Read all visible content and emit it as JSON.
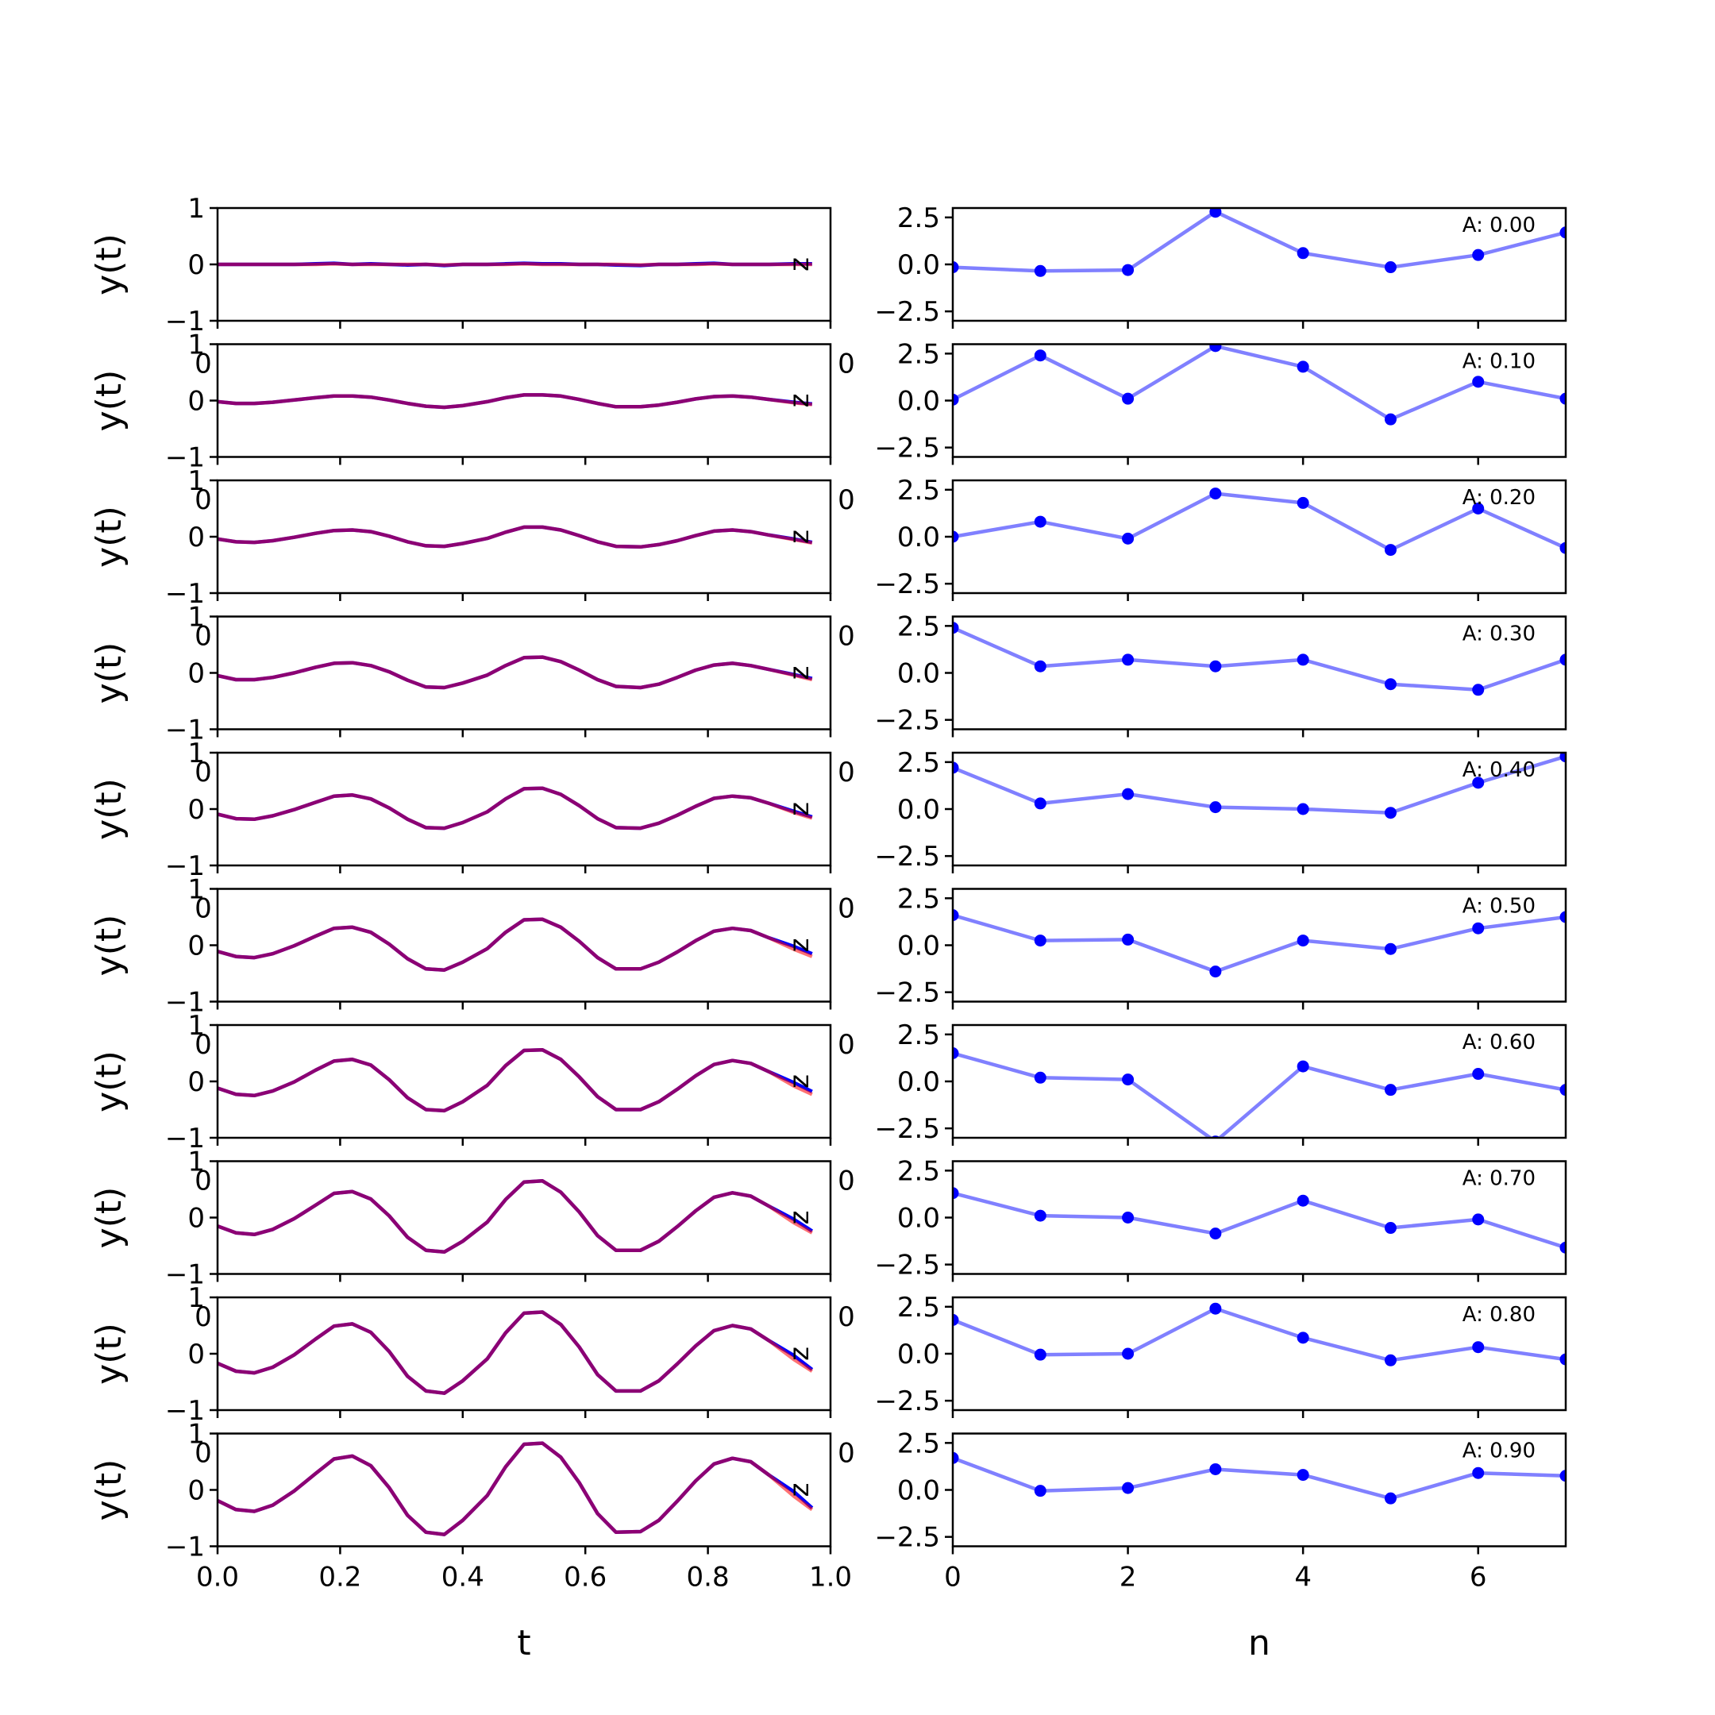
{
  "chart_data": [
    {
      "type": "line",
      "panel": "time-domain",
      "xlabel": "t",
      "ylabel": "y(t)",
      "xlim": [
        0.0,
        1.0
      ],
      "ylim": [
        -1,
        1
      ],
      "x_ticks": [
        "0.0",
        "0.2",
        "0.4",
        "0.6",
        "0.8",
        "1.0"
      ],
      "y_ticks": [
        "1",
        "0",
        "−1"
      ],
      "stray_tick_labels": [
        "0",
        "0"
      ],
      "t": [
        0.0,
        0.03,
        0.06,
        0.09,
        0.125,
        0.16,
        0.19,
        0.22,
        0.25,
        0.28,
        0.31,
        0.34,
        0.37,
        0.4,
        0.44,
        0.47,
        0.5,
        0.53,
        0.56,
        0.59,
        0.62,
        0.65,
        0.69,
        0.72,
        0.75,
        0.78,
        0.81,
        0.84,
        0.87,
        0.9,
        0.94,
        0.97
      ],
      "rows": [
        {
          "A": 0.0,
          "blue": [
            0.0,
            0.0,
            0.0,
            0.0,
            0.0,
            0.01,
            0.02,
            0.0,
            0.01,
            0.0,
            -0.01,
            0.0,
            -0.02,
            0.0,
            0.0,
            0.01,
            0.02,
            0.01,
            0.01,
            0.0,
            0.0,
            -0.01,
            -0.02,
            0.0,
            0.0,
            0.01,
            0.02,
            0.0,
            0.0,
            0.0,
            0.01,
            0.01
          ],
          "red": [
            0.0,
            0.0,
            0.0,
            0.0,
            0.0,
            0.0,
            0.01,
            0.0,
            0.0,
            0.0,
            0.0,
            0.0,
            -0.01,
            0.0,
            0.0,
            0.0,
            0.01,
            0.0,
            0.0,
            0.0,
            0.0,
            0.0,
            -0.01,
            0.0,
            0.0,
            0.0,
            0.01,
            0.0,
            0.0,
            0.0,
            0.0,
            0.0
          ]
        },
        {
          "A": 0.1,
          "blue": [
            -0.02,
            -0.05,
            -0.05,
            -0.03,
            0.01,
            0.05,
            0.08,
            0.08,
            0.06,
            0.01,
            -0.05,
            -0.1,
            -0.12,
            -0.09,
            -0.02,
            0.05,
            0.1,
            0.1,
            0.08,
            0.02,
            -0.05,
            -0.11,
            -0.11,
            -0.08,
            -0.03,
            0.03,
            0.07,
            0.08,
            0.06,
            0.02,
            -0.03,
            -0.06
          ],
          "red": [
            -0.02,
            -0.05,
            -0.05,
            -0.03,
            0.01,
            0.05,
            0.08,
            0.08,
            0.06,
            0.01,
            -0.05,
            -0.1,
            -0.12,
            -0.09,
            -0.02,
            0.05,
            0.1,
            0.1,
            0.08,
            0.02,
            -0.05,
            -0.11,
            -0.11,
            -0.08,
            -0.03,
            0.03,
            0.07,
            0.08,
            0.06,
            0.02,
            -0.04,
            -0.07
          ]
        },
        {
          "A": 0.2,
          "blue": [
            -0.04,
            -0.09,
            -0.1,
            -0.07,
            -0.01,
            0.06,
            0.11,
            0.12,
            0.09,
            0.01,
            -0.09,
            -0.16,
            -0.17,
            -0.12,
            -0.03,
            0.08,
            0.17,
            0.17,
            0.12,
            0.02,
            -0.09,
            -0.17,
            -0.18,
            -0.14,
            -0.07,
            0.02,
            0.1,
            0.12,
            0.09,
            0.03,
            -0.04,
            -0.1
          ],
          "red": [
            -0.04,
            -0.09,
            -0.1,
            -0.07,
            -0.01,
            0.06,
            0.11,
            0.12,
            0.09,
            0.01,
            -0.09,
            -0.16,
            -0.17,
            -0.12,
            -0.03,
            0.08,
            0.17,
            0.17,
            0.12,
            0.02,
            -0.09,
            -0.17,
            -0.18,
            -0.14,
            -0.07,
            0.02,
            0.1,
            0.12,
            0.09,
            0.03,
            -0.05,
            -0.11
          ]
        },
        {
          "A": 0.3,
          "blue": [
            -0.05,
            -0.12,
            -0.12,
            -0.08,
            0.0,
            0.1,
            0.17,
            0.18,
            0.13,
            0.02,
            -0.13,
            -0.25,
            -0.26,
            -0.18,
            -0.04,
            0.13,
            0.27,
            0.28,
            0.2,
            0.05,
            -0.12,
            -0.24,
            -0.26,
            -0.2,
            -0.08,
            0.05,
            0.14,
            0.17,
            0.13,
            0.06,
            -0.03,
            -0.1
          ],
          "red": [
            -0.05,
            -0.12,
            -0.12,
            -0.08,
            0.0,
            0.1,
            0.17,
            0.18,
            0.13,
            0.02,
            -0.13,
            -0.25,
            -0.26,
            -0.18,
            -0.04,
            0.13,
            0.27,
            0.28,
            0.2,
            0.05,
            -0.12,
            -0.24,
            -0.26,
            -0.2,
            -0.08,
            0.05,
            0.14,
            0.17,
            0.13,
            0.06,
            -0.04,
            -0.12
          ]
        },
        {
          "A": 0.4,
          "blue": [
            -0.09,
            -0.17,
            -0.18,
            -0.12,
            -0.01,
            0.12,
            0.23,
            0.25,
            0.18,
            0.02,
            -0.18,
            -0.33,
            -0.34,
            -0.24,
            -0.05,
            0.18,
            0.36,
            0.37,
            0.26,
            0.06,
            -0.17,
            -0.33,
            -0.34,
            -0.25,
            -0.11,
            0.05,
            0.19,
            0.23,
            0.2,
            0.1,
            -0.04,
            -0.14
          ],
          "red": [
            -0.09,
            -0.17,
            -0.18,
            -0.12,
            -0.01,
            0.12,
            0.23,
            0.25,
            0.18,
            0.02,
            -0.18,
            -0.33,
            -0.34,
            -0.24,
            -0.05,
            0.18,
            0.36,
            0.37,
            0.26,
            0.06,
            -0.17,
            -0.33,
            -0.34,
            -0.25,
            -0.11,
            0.05,
            0.19,
            0.23,
            0.2,
            0.1,
            -0.06,
            -0.16
          ]
        },
        {
          "A": 0.5,
          "blue": [
            -0.11,
            -0.2,
            -0.22,
            -0.15,
            -0.01,
            0.16,
            0.3,
            0.32,
            0.23,
            0.02,
            -0.24,
            -0.42,
            -0.44,
            -0.3,
            -0.06,
            0.23,
            0.45,
            0.46,
            0.32,
            0.07,
            -0.22,
            -0.42,
            -0.42,
            -0.3,
            -0.12,
            0.08,
            0.25,
            0.3,
            0.26,
            0.13,
            -0.02,
            -0.15
          ],
          "red": [
            -0.11,
            -0.2,
            -0.22,
            -0.15,
            -0.01,
            0.16,
            0.3,
            0.32,
            0.23,
            0.02,
            -0.24,
            -0.42,
            -0.44,
            -0.3,
            -0.06,
            0.23,
            0.45,
            0.46,
            0.32,
            0.07,
            -0.22,
            -0.42,
            -0.42,
            -0.3,
            -0.12,
            0.08,
            0.25,
            0.3,
            0.26,
            0.13,
            -0.07,
            -0.2
          ]
        },
        {
          "A": 0.6,
          "blue": [
            -0.12,
            -0.23,
            -0.25,
            -0.17,
            -0.01,
            0.2,
            0.36,
            0.39,
            0.29,
            0.03,
            -0.29,
            -0.5,
            -0.52,
            -0.36,
            -0.07,
            0.28,
            0.55,
            0.56,
            0.39,
            0.08,
            -0.27,
            -0.5,
            -0.5,
            -0.36,
            -0.14,
            0.1,
            0.3,
            0.37,
            0.32,
            0.17,
            -0.02,
            -0.18
          ],
          "red": [
            -0.12,
            -0.23,
            -0.25,
            -0.17,
            -0.01,
            0.2,
            0.36,
            0.39,
            0.29,
            0.03,
            -0.29,
            -0.5,
            -0.52,
            -0.36,
            -0.07,
            0.28,
            0.55,
            0.56,
            0.39,
            0.08,
            -0.27,
            -0.5,
            -0.5,
            -0.36,
            -0.14,
            0.1,
            0.3,
            0.37,
            0.32,
            0.17,
            -0.08,
            -0.23
          ]
        },
        {
          "A": 0.7,
          "blue": [
            -0.15,
            -0.27,
            -0.3,
            -0.21,
            -0.02,
            0.22,
            0.43,
            0.46,
            0.33,
            0.03,
            -0.35,
            -0.58,
            -0.61,
            -0.42,
            -0.08,
            0.32,
            0.63,
            0.65,
            0.45,
            0.1,
            -0.32,
            -0.58,
            -0.58,
            -0.42,
            -0.16,
            0.12,
            0.36,
            0.44,
            0.38,
            0.2,
            -0.03,
            -0.24
          ],
          "red": [
            -0.15,
            -0.27,
            -0.3,
            -0.21,
            -0.02,
            0.22,
            0.43,
            0.46,
            0.33,
            0.03,
            -0.35,
            -0.58,
            -0.61,
            -0.42,
            -0.08,
            0.32,
            0.63,
            0.65,
            0.45,
            0.1,
            -0.32,
            -0.58,
            -0.58,
            -0.42,
            -0.16,
            0.12,
            0.36,
            0.44,
            0.38,
            0.2,
            -0.09,
            -0.27
          ]
        },
        {
          "A": 0.8,
          "blue": [
            -0.17,
            -0.31,
            -0.34,
            -0.24,
            -0.02,
            0.26,
            0.49,
            0.53,
            0.38,
            0.04,
            -0.4,
            -0.66,
            -0.7,
            -0.48,
            -0.09,
            0.37,
            0.72,
            0.74,
            0.52,
            0.12,
            -0.37,
            -0.66,
            -0.66,
            -0.48,
            -0.18,
            0.14,
            0.41,
            0.5,
            0.44,
            0.23,
            -0.03,
            -0.28
          ],
          "red": [
            -0.17,
            -0.31,
            -0.34,
            -0.24,
            -0.02,
            0.26,
            0.49,
            0.53,
            0.38,
            0.04,
            -0.4,
            -0.66,
            -0.7,
            -0.48,
            -0.09,
            0.37,
            0.72,
            0.74,
            0.52,
            0.12,
            -0.37,
            -0.66,
            -0.66,
            -0.48,
            -0.18,
            0.14,
            0.41,
            0.5,
            0.44,
            0.23,
            -0.1,
            -0.31
          ]
        },
        {
          "A": 0.9,
          "blue": [
            -0.19,
            -0.35,
            -0.38,
            -0.27,
            -0.02,
            0.29,
            0.55,
            0.6,
            0.43,
            0.04,
            -0.45,
            -0.75,
            -0.79,
            -0.54,
            -0.1,
            0.41,
            0.81,
            0.83,
            0.58,
            0.13,
            -0.42,
            -0.75,
            -0.74,
            -0.54,
            -0.2,
            0.16,
            0.46,
            0.56,
            0.5,
            0.26,
            -0.03,
            -0.32
          ],
          "red": [
            -0.19,
            -0.35,
            -0.38,
            -0.27,
            -0.02,
            0.29,
            0.55,
            0.6,
            0.43,
            0.04,
            -0.45,
            -0.75,
            -0.79,
            -0.54,
            -0.1,
            0.41,
            0.81,
            0.83,
            0.58,
            0.13,
            -0.42,
            -0.75,
            -0.74,
            -0.54,
            -0.2,
            0.16,
            0.46,
            0.56,
            0.5,
            0.26,
            -0.11,
            -0.35
          ]
        }
      ],
      "colors": {
        "blue": "#0000ff",
        "red": "#ff0000"
      }
    },
    {
      "type": "line",
      "panel": "samples",
      "xlabel": "n",
      "ylabel": "",
      "xlim": [
        0,
        7
      ],
      "ylim": [
        -3,
        3
      ],
      "x_ticks": [
        "0",
        "2",
        "4",
        "6"
      ],
      "y_ticks": [
        "2.5",
        "0.0",
        "−2.5"
      ],
      "n": [
        0,
        1,
        2,
        3,
        4,
        5,
        6,
        7
      ],
      "rows": [
        {
          "annotation": "A: 0.00",
          "values": [
            -0.15,
            -0.35,
            -0.3,
            2.8,
            0.6,
            -0.15,
            0.5,
            1.7
          ]
        },
        {
          "annotation": "A: 0.10",
          "values": [
            0.05,
            2.4,
            0.1,
            2.9,
            1.8,
            -1.0,
            1.0,
            0.1
          ]
        },
        {
          "annotation": "A: 0.20",
          "values": [
            0.0,
            0.8,
            -0.1,
            2.3,
            1.8,
            -0.7,
            1.5,
            -0.6
          ]
        },
        {
          "annotation": "A: 0.30",
          "values": [
            2.4,
            0.35,
            0.7,
            0.35,
            0.7,
            -0.6,
            -0.9,
            0.7
          ]
        },
        {
          "annotation": "A: 0.40",
          "values": [
            2.2,
            0.3,
            0.8,
            0.1,
            0.0,
            -0.2,
            1.4,
            2.8
          ]
        },
        {
          "annotation": "A: 0.50",
          "values": [
            1.6,
            0.25,
            0.3,
            -1.4,
            0.25,
            -0.2,
            0.9,
            1.5
          ]
        },
        {
          "annotation": "A: 0.60",
          "values": [
            1.5,
            0.2,
            0.1,
            -3.2,
            0.8,
            -0.45,
            0.4,
            -0.45
          ]
        },
        {
          "annotation": "A: 0.70",
          "values": [
            1.3,
            0.1,
            0.0,
            -0.85,
            0.9,
            -0.55,
            -0.1,
            -1.6
          ]
        },
        {
          "annotation": "A: 0.80",
          "values": [
            1.8,
            -0.05,
            0.0,
            2.4,
            0.85,
            -0.35,
            0.35,
            -0.3
          ]
        },
        {
          "annotation": "A: 0.90",
          "values": [
            1.7,
            -0.05,
            0.1,
            1.1,
            0.8,
            -0.45,
            0.9,
            0.75
          ]
        }
      ],
      "colors": {
        "line": "#8080ff",
        "marker": "#0000ff"
      }
    }
  ]
}
